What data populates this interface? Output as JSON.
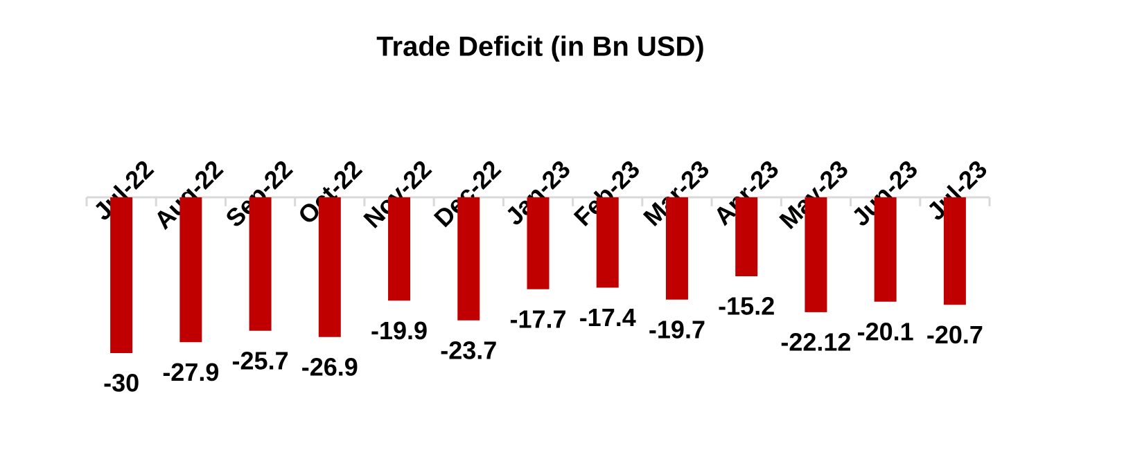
{
  "chart_data": {
    "type": "bar",
    "title": "Trade Deficit (in Bn USD)",
    "categories": [
      "Jul-22",
      "Aug-22",
      "Sep-22",
      "Oct-22",
      "Nov-22",
      "Dec-22",
      "Jan-23",
      "Feb-23",
      "Mar-23",
      "Apr-23",
      "May-23",
      "Jun-23",
      "Jul-23"
    ],
    "values": [
      -30,
      -27.9,
      -25.7,
      -26.9,
      -19.9,
      -23.7,
      -17.7,
      -17.4,
      -19.7,
      -15.2,
      -22.12,
      -20.1,
      -20.7
    ],
    "color": "#c00000"
  }
}
